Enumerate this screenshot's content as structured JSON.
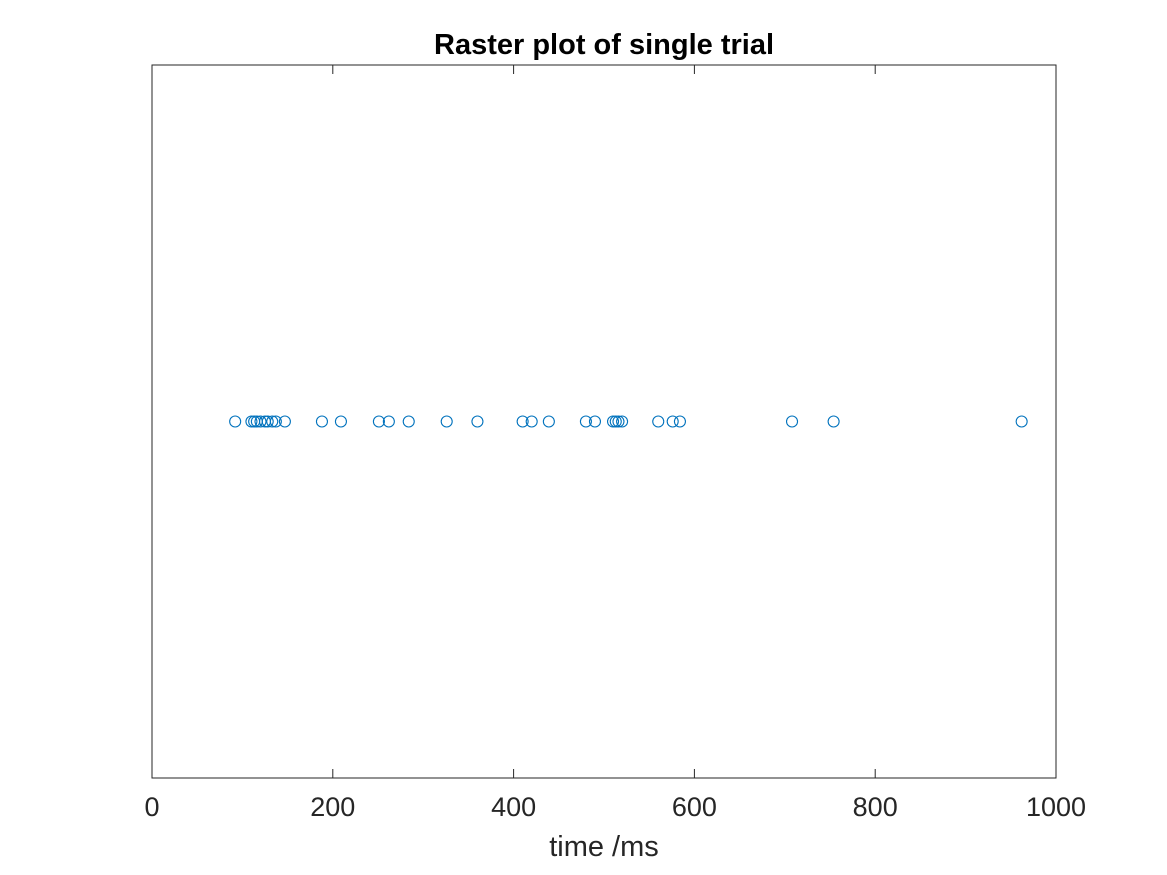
{
  "chart_data": {
    "type": "scatter",
    "title": "Raster plot of single trial",
    "xlabel": "time /ms",
    "ylabel": "",
    "xlim": [
      0,
      1000
    ],
    "ylim": [
      0,
      2
    ],
    "x_ticks": [
      "0",
      "200",
      "400",
      "600",
      "800",
      "1000"
    ],
    "y_ticks": [],
    "grid": false,
    "legend": "none",
    "marker": "open-circle",
    "series": [
      {
        "color": "#0072BD",
        "x": [
          92,
          110,
          113,
          116,
          120,
          125,
          128,
          133,
          137,
          147,
          188,
          209,
          251,
          262,
          284,
          326,
          360,
          410,
          420,
          439,
          480,
          490,
          510,
          513,
          516,
          520,
          560,
          576,
          584,
          708,
          754,
          962
        ],
        "y": [
          1,
          1,
          1,
          1,
          1,
          1,
          1,
          1,
          1,
          1,
          1,
          1,
          1,
          1,
          1,
          1,
          1,
          1,
          1,
          1,
          1,
          1,
          1,
          1,
          1,
          1,
          1,
          1,
          1,
          1,
          1,
          1
        ]
      }
    ]
  }
}
